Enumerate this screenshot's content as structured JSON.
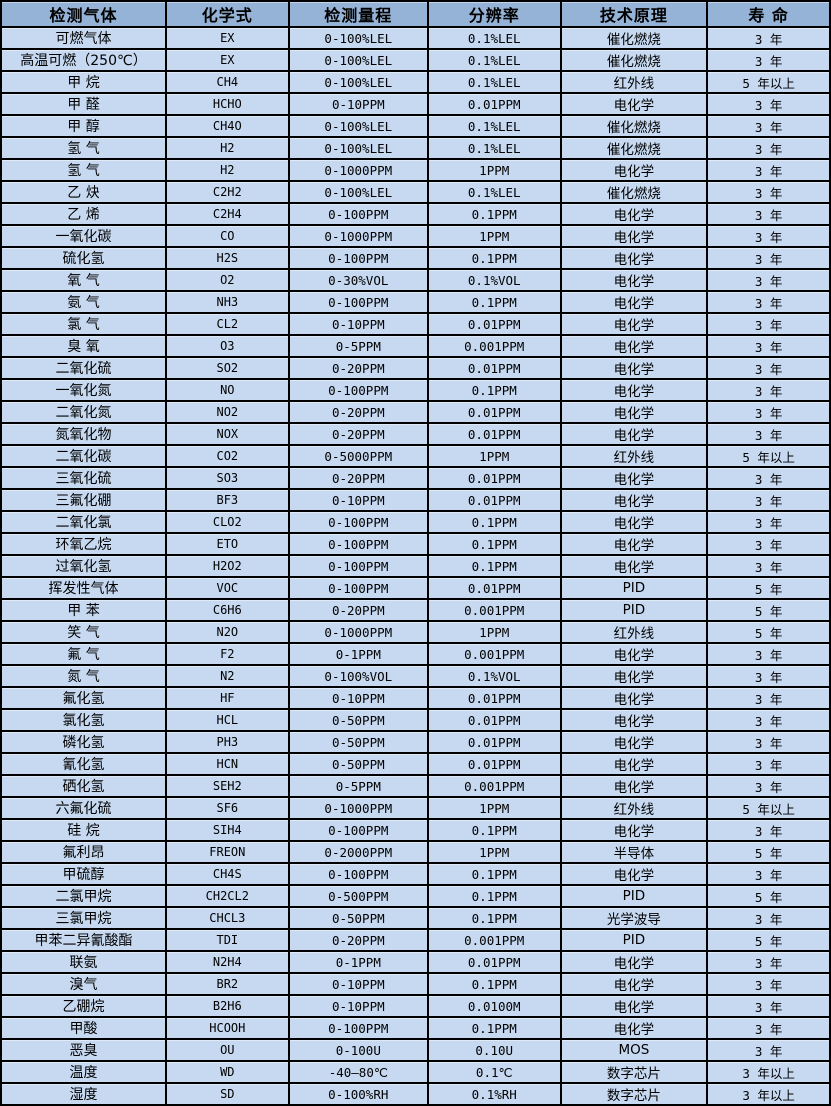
{
  "colors": {
    "header_bg": "#95B3D7",
    "row_bg": "#C6D9F1",
    "border": "#000000",
    "text": "#000000"
  },
  "table": {
    "headers": [
      "检测气体",
      "化学式",
      "检测量程",
      "分辨率",
      "技术原理",
      "寿 命"
    ],
    "rows": [
      [
        "可燃气体",
        "EX",
        "0-100%LEL",
        "0.1%LEL",
        "催化燃烧",
        "3 年"
      ],
      [
        "高温可燃（250℃）",
        "EX",
        "0-100%LEL",
        "0.1%LEL",
        "催化燃烧",
        "3 年"
      ],
      [
        "甲 烷",
        "CH4",
        "0-100%LEL",
        "0.1%LEL",
        "红外线",
        "5 年以上"
      ],
      [
        "甲 醛",
        "HCHO",
        "0-10PPM",
        "0.01PPM",
        "电化学",
        "3 年"
      ],
      [
        "甲 醇",
        "CH4O",
        "0-100%LEL",
        "0.1%LEL",
        "催化燃烧",
        "3 年"
      ],
      [
        "氢 气",
        "H2",
        "0-100%LEL",
        "0.1%LEL",
        "催化燃烧",
        "3 年"
      ],
      [
        "氢 气",
        "H2",
        "0-1000PPM",
        "1PPM",
        "电化学",
        "3 年"
      ],
      [
        "乙 炔",
        "C2H2",
        "0-100%LEL",
        "0.1%LEL",
        "催化燃烧",
        "3 年"
      ],
      [
        "乙 烯",
        "C2H4",
        "0-100PPM",
        "0.1PPM",
        "电化学",
        "3 年"
      ],
      [
        "一氧化碳",
        "CO",
        "0-1000PPM",
        "1PPM",
        "电化学",
        "3 年"
      ],
      [
        "硫化氢",
        "H2S",
        "0-100PPM",
        "0.1PPM",
        "电化学",
        "3 年"
      ],
      [
        "氧 气",
        "O2",
        "0-30%VOL",
        "0.1%VOL",
        "电化学",
        "3 年"
      ],
      [
        "氨 气",
        "NH3",
        "0-100PPM",
        "0.1PPM",
        "电化学",
        "3 年"
      ],
      [
        "氯 气",
        "CL2",
        "0-10PPM",
        "0.01PPM",
        "电化学",
        "3 年"
      ],
      [
        "臭 氧",
        "O3",
        "0-5PPM",
        "0.001PPM",
        "电化学",
        "3 年"
      ],
      [
        "二氧化硫",
        "SO2",
        "0-20PPM",
        "0.01PPM",
        "电化学",
        "3 年"
      ],
      [
        "一氧化氮",
        "NO",
        "0-100PPM",
        "0.1PPM",
        "电化学",
        "3 年"
      ],
      [
        "二氧化氮",
        "NO2",
        "0-20PPM",
        "0.01PPM",
        "电化学",
        "3 年"
      ],
      [
        "氮氧化物",
        "NOX",
        "0-20PPM",
        "0.01PPM",
        "电化学",
        "3 年"
      ],
      [
        "二氧化碳",
        "CO2",
        "0-5000PPM",
        "1PPM",
        "红外线",
        "5 年以上"
      ],
      [
        "三氧化硫",
        "SO3",
        "0-20PPM",
        "0.01PPM",
        "电化学",
        "3 年"
      ],
      [
        "三氟化硼",
        "BF3",
        "0-10PPM",
        "0.01PPM",
        "电化学",
        "3 年"
      ],
      [
        "二氧化氯",
        "CLO2",
        "0-100PPM",
        "0.1PPM",
        "电化学",
        "3 年"
      ],
      [
        "环氧乙烷",
        "ETO",
        "0-100PPM",
        "0.1PPM",
        "电化学",
        "3 年"
      ],
      [
        "过氧化氢",
        "H2O2",
        "0-100PPM",
        "0.1PPM",
        "电化学",
        "3 年"
      ],
      [
        "挥发性气体",
        "VOC",
        "0-100PPM",
        "0.01PPM",
        "PID",
        "5 年"
      ],
      [
        "甲 苯",
        "C6H6",
        "0-20PPM",
        "0.001PPM",
        "PID",
        "5 年"
      ],
      [
        "笑 气",
        "N2O",
        "0-1000PPM",
        "1PPM",
        "红外线",
        "5 年"
      ],
      [
        "氟 气",
        "F2",
        "0-1PPM",
        "0.001PPM",
        "电化学",
        "3 年"
      ],
      [
        "氮 气",
        "N2",
        "0-100%VOL",
        "0.1%VOL",
        "电化学",
        "3 年"
      ],
      [
        "氟化氢",
        "HF",
        "0-10PPM",
        "0.01PPM",
        "电化学",
        "3 年"
      ],
      [
        "氯化氢",
        "HCL",
        "0-50PPM",
        "0.01PPM",
        "电化学",
        "3 年"
      ],
      [
        "磷化氢",
        "PH3",
        "0-50PPM",
        "0.01PPM",
        "电化学",
        "3 年"
      ],
      [
        "氰化氢",
        "HCN",
        "0-50PPM",
        "0.01PPM",
        "电化学",
        "3 年"
      ],
      [
        "硒化氢",
        "SEH2",
        "0-5PPM",
        "0.001PPM",
        "电化学",
        "3 年"
      ],
      [
        "六氟化硫",
        "SF6",
        "0-1000PPM",
        "1PPM",
        "红外线",
        "5 年以上"
      ],
      [
        "硅 烷",
        "SIH4",
        "0-100PPM",
        "0.1PPM",
        "电化学",
        "3 年"
      ],
      [
        "氟利昂",
        "FREON",
        "0-2000PPM",
        "1PPM",
        "半导体",
        "5 年"
      ],
      [
        "甲硫醇",
        "CH4S",
        "0-100PPM",
        "0.1PPM",
        "电化学",
        "3 年"
      ],
      [
        "二氯甲烷",
        "CH2CL2",
        "0-500PPM",
        "0.1PPM",
        "PID",
        "5 年"
      ],
      [
        "三氯甲烷",
        "CHCL3",
        "0-50PPM",
        "0.1PPM",
        "光学波导",
        "3 年"
      ],
      [
        "甲苯二异氰酸酯",
        "TDI",
        "0-20PPM",
        "0.001PPM",
        "PID",
        "5 年"
      ],
      [
        "联氨",
        "N2H4",
        "0-1PPM",
        "0.01PPM",
        "电化学",
        "3 年"
      ],
      [
        "溴气",
        "BR2",
        "0-10PPM",
        "0.1PPM",
        "电化学",
        "3 年"
      ],
      [
        "乙硼烷",
        "B2H6",
        "0-10PPM",
        "0.0100M",
        "电化学",
        "3 年"
      ],
      [
        "甲酸",
        "HCOOH",
        "0-100PPM",
        "0.1PPM",
        "电化学",
        "3 年"
      ],
      [
        "恶臭",
        "OU",
        "0-100U",
        "0.10U",
        "MOS",
        "3 年"
      ],
      [
        "温度",
        "WD",
        "-40—80℃",
        "0.1℃",
        "数字芯片",
        "3 年以上"
      ],
      [
        "湿度",
        "SD",
        "0-100%RH",
        "0.1%RH",
        "数字芯片",
        "3 年以上"
      ]
    ]
  }
}
